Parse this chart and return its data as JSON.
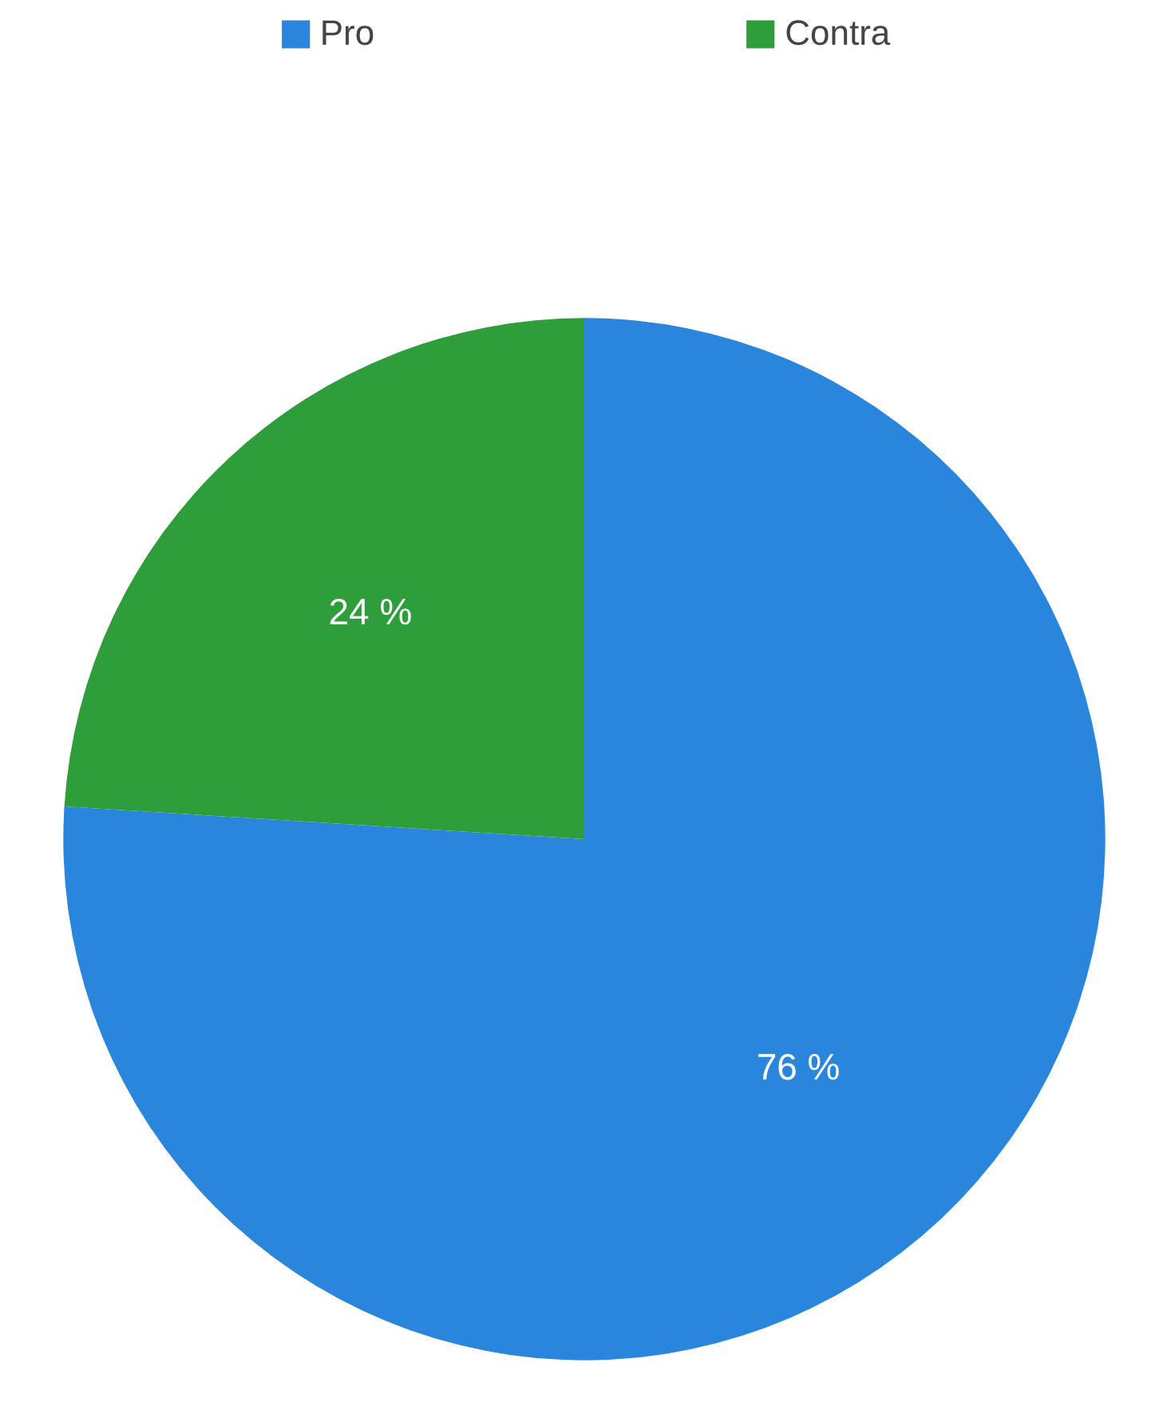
{
  "chart_data": {
    "type": "pie",
    "categories": [
      "Pro",
      "Contra"
    ],
    "values": [
      76,
      24
    ],
    "colors": [
      "#2a86dd",
      "#2e9e3a"
    ],
    "value_labels": [
      "76 %",
      "24 %"
    ],
    "legend": "top"
  }
}
